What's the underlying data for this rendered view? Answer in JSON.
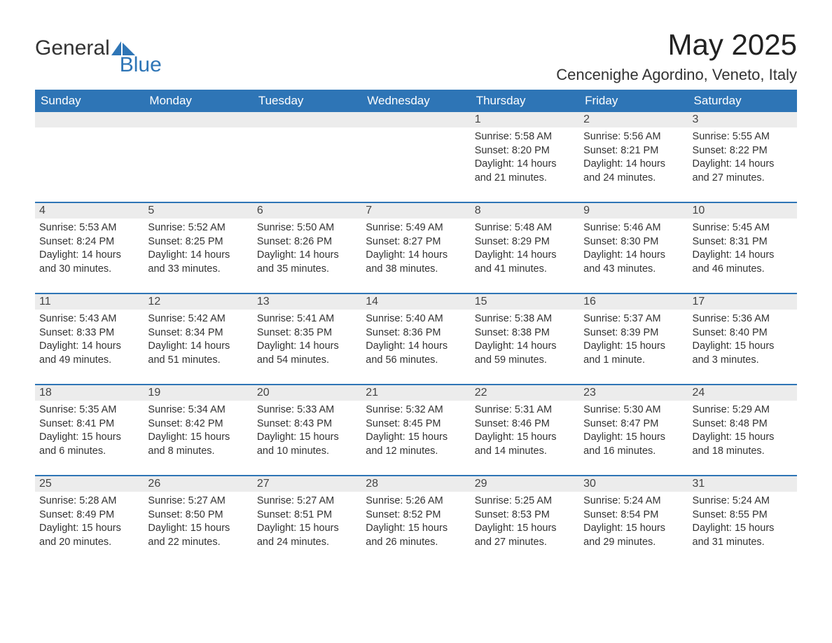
{
  "brand": {
    "text_general": "General",
    "text_blue": "Blue",
    "triangle_color": "#2e75b6"
  },
  "title": "May 2025",
  "location": "Cencenighe Agordino, Veneto, Italy",
  "colors": {
    "header_bg": "#2e75b6",
    "header_text": "#ffffff",
    "daynum_bg": "#ececec",
    "page_bg": "#ffffff",
    "text": "#333333"
  },
  "day_headers": [
    "Sunday",
    "Monday",
    "Tuesday",
    "Wednesday",
    "Thursday",
    "Friday",
    "Saturday"
  ],
  "weeks": [
    [
      {
        "blank": true
      },
      {
        "blank": true
      },
      {
        "blank": true
      },
      {
        "blank": true
      },
      {
        "n": "1",
        "sunrise": "Sunrise: 5:58 AM",
        "sunset": "Sunset: 8:20 PM",
        "day1": "Daylight: 14 hours",
        "day2": "and 21 minutes."
      },
      {
        "n": "2",
        "sunrise": "Sunrise: 5:56 AM",
        "sunset": "Sunset: 8:21 PM",
        "day1": "Daylight: 14 hours",
        "day2": "and 24 minutes."
      },
      {
        "n": "3",
        "sunrise": "Sunrise: 5:55 AM",
        "sunset": "Sunset: 8:22 PM",
        "day1": "Daylight: 14 hours",
        "day2": "and 27 minutes."
      }
    ],
    [
      {
        "n": "4",
        "sunrise": "Sunrise: 5:53 AM",
        "sunset": "Sunset: 8:24 PM",
        "day1": "Daylight: 14 hours",
        "day2": "and 30 minutes."
      },
      {
        "n": "5",
        "sunrise": "Sunrise: 5:52 AM",
        "sunset": "Sunset: 8:25 PM",
        "day1": "Daylight: 14 hours",
        "day2": "and 33 minutes."
      },
      {
        "n": "6",
        "sunrise": "Sunrise: 5:50 AM",
        "sunset": "Sunset: 8:26 PM",
        "day1": "Daylight: 14 hours",
        "day2": "and 35 minutes."
      },
      {
        "n": "7",
        "sunrise": "Sunrise: 5:49 AM",
        "sunset": "Sunset: 8:27 PM",
        "day1": "Daylight: 14 hours",
        "day2": "and 38 minutes."
      },
      {
        "n": "8",
        "sunrise": "Sunrise: 5:48 AM",
        "sunset": "Sunset: 8:29 PM",
        "day1": "Daylight: 14 hours",
        "day2": "and 41 minutes."
      },
      {
        "n": "9",
        "sunrise": "Sunrise: 5:46 AM",
        "sunset": "Sunset: 8:30 PM",
        "day1": "Daylight: 14 hours",
        "day2": "and 43 minutes."
      },
      {
        "n": "10",
        "sunrise": "Sunrise: 5:45 AM",
        "sunset": "Sunset: 8:31 PM",
        "day1": "Daylight: 14 hours",
        "day2": "and 46 minutes."
      }
    ],
    [
      {
        "n": "11",
        "sunrise": "Sunrise: 5:43 AM",
        "sunset": "Sunset: 8:33 PM",
        "day1": "Daylight: 14 hours",
        "day2": "and 49 minutes."
      },
      {
        "n": "12",
        "sunrise": "Sunrise: 5:42 AM",
        "sunset": "Sunset: 8:34 PM",
        "day1": "Daylight: 14 hours",
        "day2": "and 51 minutes."
      },
      {
        "n": "13",
        "sunrise": "Sunrise: 5:41 AM",
        "sunset": "Sunset: 8:35 PM",
        "day1": "Daylight: 14 hours",
        "day2": "and 54 minutes."
      },
      {
        "n": "14",
        "sunrise": "Sunrise: 5:40 AM",
        "sunset": "Sunset: 8:36 PM",
        "day1": "Daylight: 14 hours",
        "day2": "and 56 minutes."
      },
      {
        "n": "15",
        "sunrise": "Sunrise: 5:38 AM",
        "sunset": "Sunset: 8:38 PM",
        "day1": "Daylight: 14 hours",
        "day2": "and 59 minutes."
      },
      {
        "n": "16",
        "sunrise": "Sunrise: 5:37 AM",
        "sunset": "Sunset: 8:39 PM",
        "day1": "Daylight: 15 hours",
        "day2": "and 1 minute."
      },
      {
        "n": "17",
        "sunrise": "Sunrise: 5:36 AM",
        "sunset": "Sunset: 8:40 PM",
        "day1": "Daylight: 15 hours",
        "day2": "and 3 minutes."
      }
    ],
    [
      {
        "n": "18",
        "sunrise": "Sunrise: 5:35 AM",
        "sunset": "Sunset: 8:41 PM",
        "day1": "Daylight: 15 hours",
        "day2": "and 6 minutes."
      },
      {
        "n": "19",
        "sunrise": "Sunrise: 5:34 AM",
        "sunset": "Sunset: 8:42 PM",
        "day1": "Daylight: 15 hours",
        "day2": "and 8 minutes."
      },
      {
        "n": "20",
        "sunrise": "Sunrise: 5:33 AM",
        "sunset": "Sunset: 8:43 PM",
        "day1": "Daylight: 15 hours",
        "day2": "and 10 minutes."
      },
      {
        "n": "21",
        "sunrise": "Sunrise: 5:32 AM",
        "sunset": "Sunset: 8:45 PM",
        "day1": "Daylight: 15 hours",
        "day2": "and 12 minutes."
      },
      {
        "n": "22",
        "sunrise": "Sunrise: 5:31 AM",
        "sunset": "Sunset: 8:46 PM",
        "day1": "Daylight: 15 hours",
        "day2": "and 14 minutes."
      },
      {
        "n": "23",
        "sunrise": "Sunrise: 5:30 AM",
        "sunset": "Sunset: 8:47 PM",
        "day1": "Daylight: 15 hours",
        "day2": "and 16 minutes."
      },
      {
        "n": "24",
        "sunrise": "Sunrise: 5:29 AM",
        "sunset": "Sunset: 8:48 PM",
        "day1": "Daylight: 15 hours",
        "day2": "and 18 minutes."
      }
    ],
    [
      {
        "n": "25",
        "sunrise": "Sunrise: 5:28 AM",
        "sunset": "Sunset: 8:49 PM",
        "day1": "Daylight: 15 hours",
        "day2": "and 20 minutes."
      },
      {
        "n": "26",
        "sunrise": "Sunrise: 5:27 AM",
        "sunset": "Sunset: 8:50 PM",
        "day1": "Daylight: 15 hours",
        "day2": "and 22 minutes."
      },
      {
        "n": "27",
        "sunrise": "Sunrise: 5:27 AM",
        "sunset": "Sunset: 8:51 PM",
        "day1": "Daylight: 15 hours",
        "day2": "and 24 minutes."
      },
      {
        "n": "28",
        "sunrise": "Sunrise: 5:26 AM",
        "sunset": "Sunset: 8:52 PM",
        "day1": "Daylight: 15 hours",
        "day2": "and 26 minutes."
      },
      {
        "n": "29",
        "sunrise": "Sunrise: 5:25 AM",
        "sunset": "Sunset: 8:53 PM",
        "day1": "Daylight: 15 hours",
        "day2": "and 27 minutes."
      },
      {
        "n": "30",
        "sunrise": "Sunrise: 5:24 AM",
        "sunset": "Sunset: 8:54 PM",
        "day1": "Daylight: 15 hours",
        "day2": "and 29 minutes."
      },
      {
        "n": "31",
        "sunrise": "Sunrise: 5:24 AM",
        "sunset": "Sunset: 8:55 PM",
        "day1": "Daylight: 15 hours",
        "day2": "and 31 minutes."
      }
    ]
  ]
}
